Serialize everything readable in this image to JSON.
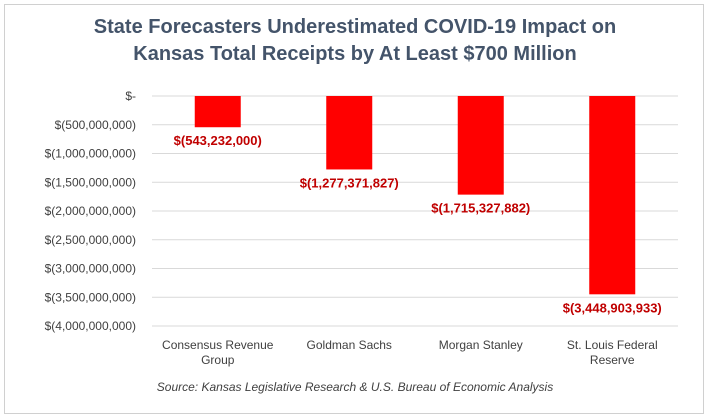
{
  "chart_data": {
    "type": "bar",
    "title_lines": [
      "State Forecasters Underestimated COVID-19 Impact on",
      "Kansas Total Receipts by At Least $700 Million"
    ],
    "categories": [
      [
        "Consensus Revenue",
        "Group"
      ],
      [
        "Goldman Sachs"
      ],
      [
        "Morgan Stanley"
      ],
      [
        "St. Louis Federal",
        "Reserve"
      ]
    ],
    "values": [
      -543232000,
      -1277371827,
      -1715327882,
      -3448903933
    ],
    "data_labels": [
      "$(543,232,000)",
      "$(1,277,371,827)",
      "$(1,715,327,882)",
      "$(3,448,903,933)"
    ],
    "ylim": [
      -4000000000,
      0
    ],
    "yticks": [
      0,
      -500000000,
      -1000000000,
      -1500000000,
      -2000000000,
      -2500000000,
      -3000000000,
      -3500000000,
      -4000000000
    ],
    "ytick_labels": [
      "$-",
      "$(500,000,000)",
      "$(1,000,000,000)",
      "$(1,500,000,000)",
      "$(2,000,000,000)",
      "$(2,500,000,000)",
      "$(3,000,000,000)",
      "$(3,500,000,000)",
      "$(4,000,000,000)"
    ],
    "grid": true,
    "bar_color": "#ff0000",
    "label_color": "#c00000",
    "source": "Source: Kansas Legislative Research & U.S. Bureau of Economic Analysis"
  }
}
